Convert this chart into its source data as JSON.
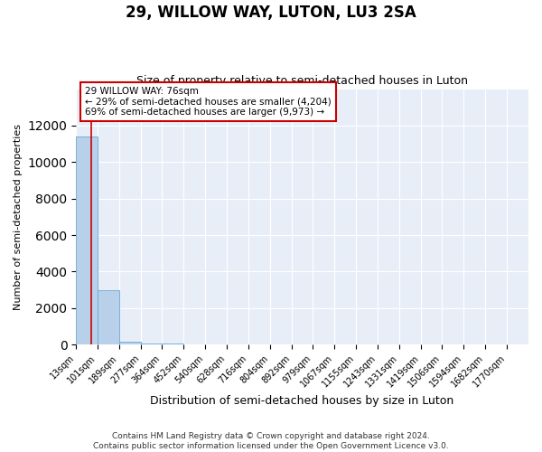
{
  "title": "29, WILLOW WAY, LUTON, LU3 2SA",
  "subtitle": "Size of property relative to semi-detached houses in Luton",
  "xlabel": "Distribution of semi-detached houses by size in Luton",
  "ylabel": "Number of semi-detached properties",
  "annotation_line1": "29 WILLOW WAY: 76sqm",
  "annotation_line2": "← 29% of semi-detached houses are smaller (4,204)",
  "annotation_line3": "69% of semi-detached houses are larger (9,973) →",
  "footer1": "Contains HM Land Registry data © Crown copyright and database right 2024.",
  "footer2": "Contains public sector information licensed under the Open Government Licence v3.0.",
  "bar_color": "#b8d0ea",
  "bar_edgecolor": "#6aaad4",
  "red_line_color": "#cc0000",
  "background_color": "#e8eef8",
  "grid_color": "#ffffff",
  "bin_edges": [
    13,
    101,
    189,
    277,
    364,
    452,
    540,
    628,
    716,
    804,
    892,
    979,
    1067,
    1155,
    1243,
    1331,
    1419,
    1506,
    1594,
    1682,
    1770
  ],
  "bin_labels": [
    "13sqm",
    "101sqm",
    "189sqm",
    "277sqm",
    "364sqm",
    "452sqm",
    "540sqm",
    "628sqm",
    "716sqm",
    "804sqm",
    "892sqm",
    "979sqm",
    "1067sqm",
    "1155sqm",
    "1243sqm",
    "1331sqm",
    "1419sqm",
    "1506sqm",
    "1594sqm",
    "1682sqm",
    "1770sqm"
  ],
  "bar_heights": [
    11380,
    2980,
    130,
    50,
    30,
    20,
    15,
    10,
    8,
    5,
    4,
    3,
    3,
    2,
    2,
    1,
    1,
    1,
    1,
    0
  ],
  "property_sqm": 76,
  "ylim": [
    0,
    14000
  ],
  "yticks": [
    0,
    2000,
    4000,
    6000,
    8000,
    10000,
    12000
  ],
  "title_fontsize": 12,
  "subtitle_fontsize": 9,
  "ylabel_fontsize": 8,
  "xlabel_fontsize": 9,
  "tick_fontsize": 7,
  "annotation_fontsize": 7.5,
  "footer_fontsize": 6.5
}
